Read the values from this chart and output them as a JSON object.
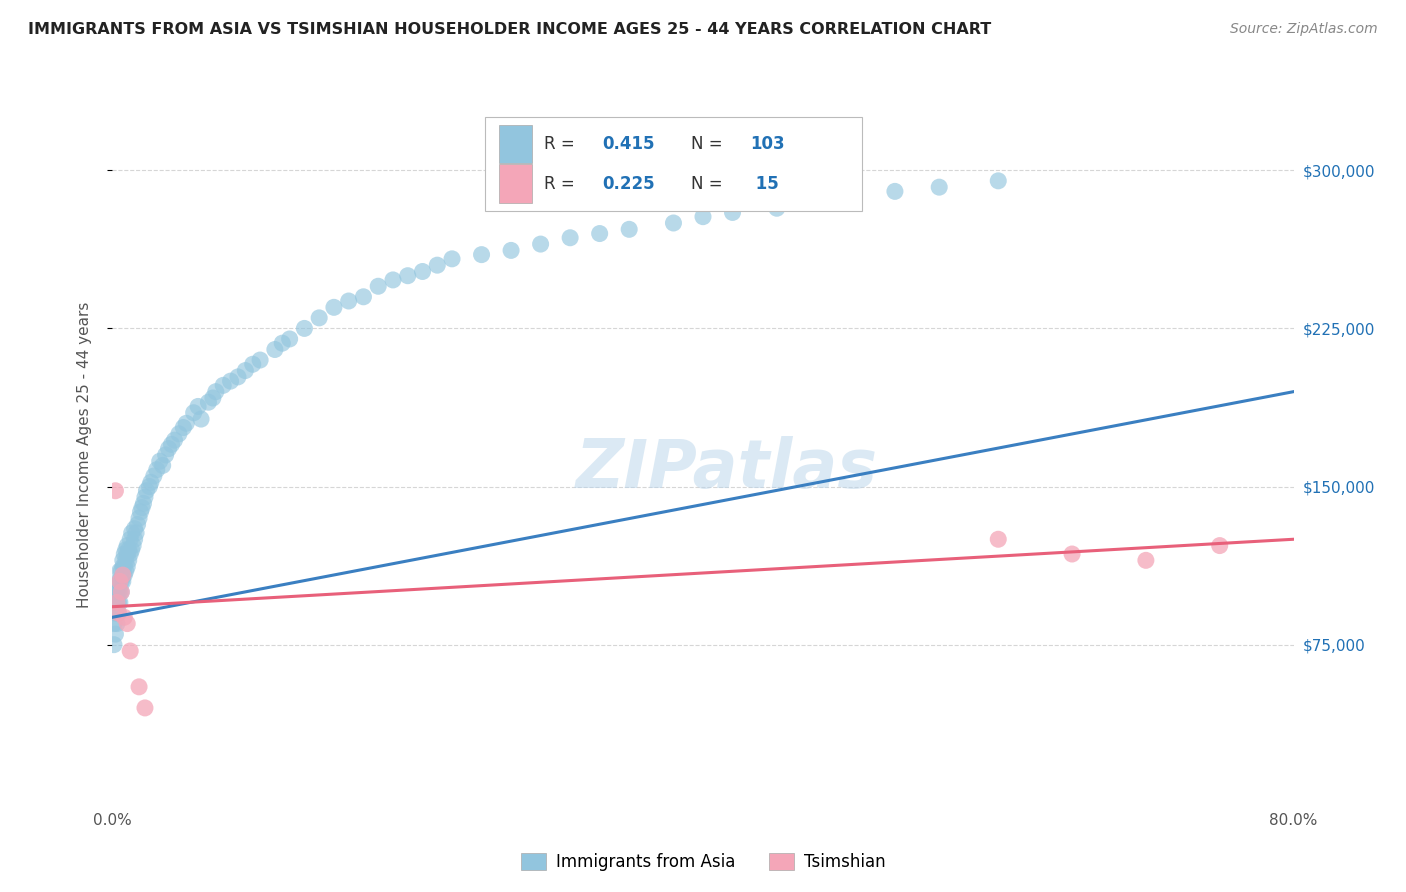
{
  "title": "IMMIGRANTS FROM ASIA VS TSIMSHIAN HOUSEHOLDER INCOME AGES 25 - 44 YEARS CORRELATION CHART",
  "source": "Source: ZipAtlas.com",
  "ylabel": "Householder Income Ages 25 - 44 years",
  "yticks": [
    75000,
    150000,
    225000,
    300000
  ],
  "ytick_labels": [
    "$75,000",
    "$150,000",
    "$225,000",
    "$300,000"
  ],
  "legend_label1": "Immigrants from Asia",
  "legend_label2": "Tsimshian",
  "color_blue": "#92c5de",
  "color_pink": "#f4a6b8",
  "color_blue_line": "#3a7fc1",
  "color_pink_line": "#e8607a",
  "color_blue_text": "#2171b5",
  "color_grid": "#cccccc",
  "watermark": "ZIPatlas",
  "xlim": [
    0.0,
    0.8
  ],
  "ylim": [
    0,
    330000
  ],
  "blue_trend_x": [
    0.0,
    0.8
  ],
  "blue_trend_y": [
    88000,
    195000
  ],
  "pink_trend_x": [
    0.0,
    0.8
  ],
  "pink_trend_y": [
    93000,
    125000
  ],
  "blue_x": [
    0.001,
    0.001,
    0.002,
    0.002,
    0.002,
    0.003,
    0.003,
    0.003,
    0.004,
    0.004,
    0.004,
    0.004,
    0.005,
    0.005,
    0.005,
    0.005,
    0.006,
    0.006,
    0.006,
    0.007,
    0.007,
    0.007,
    0.007,
    0.008,
    0.008,
    0.008,
    0.009,
    0.009,
    0.009,
    0.01,
    0.01,
    0.01,
    0.011,
    0.011,
    0.012,
    0.012,
    0.013,
    0.013,
    0.014,
    0.015,
    0.015,
    0.016,
    0.017,
    0.018,
    0.019,
    0.02,
    0.021,
    0.022,
    0.023,
    0.025,
    0.026,
    0.028,
    0.03,
    0.032,
    0.034,
    0.036,
    0.038,
    0.04,
    0.042,
    0.045,
    0.048,
    0.05,
    0.055,
    0.058,
    0.06,
    0.065,
    0.068,
    0.07,
    0.075,
    0.08,
    0.085,
    0.09,
    0.095,
    0.1,
    0.11,
    0.115,
    0.12,
    0.13,
    0.14,
    0.15,
    0.16,
    0.17,
    0.18,
    0.19,
    0.2,
    0.21,
    0.22,
    0.23,
    0.25,
    0.27,
    0.29,
    0.31,
    0.33,
    0.35,
    0.38,
    0.4,
    0.42,
    0.45,
    0.48,
    0.5,
    0.53,
    0.56,
    0.6
  ],
  "blue_y": [
    75000,
    85000,
    80000,
    90000,
    95000,
    85000,
    95000,
    100000,
    90000,
    95000,
    100000,
    105000,
    95000,
    100000,
    105000,
    110000,
    100000,
    105000,
    110000,
    105000,
    108000,
    112000,
    115000,
    108000,
    112000,
    118000,
    110000,
    115000,
    120000,
    112000,
    118000,
    122000,
    115000,
    120000,
    118000,
    125000,
    120000,
    128000,
    122000,
    125000,
    130000,
    128000,
    132000,
    135000,
    138000,
    140000,
    142000,
    145000,
    148000,
    150000,
    152000,
    155000,
    158000,
    162000,
    160000,
    165000,
    168000,
    170000,
    172000,
    175000,
    178000,
    180000,
    185000,
    188000,
    182000,
    190000,
    192000,
    195000,
    198000,
    200000,
    202000,
    205000,
    208000,
    210000,
    215000,
    218000,
    220000,
    225000,
    230000,
    235000,
    238000,
    240000,
    245000,
    248000,
    250000,
    252000,
    255000,
    258000,
    260000,
    262000,
    265000,
    268000,
    270000,
    272000,
    275000,
    278000,
    280000,
    282000,
    285000,
    288000,
    290000,
    292000,
    295000
  ],
  "pink_x": [
    0.002,
    0.003,
    0.004,
    0.005,
    0.006,
    0.007,
    0.008,
    0.01,
    0.012,
    0.018,
    0.022,
    0.6,
    0.65,
    0.7,
    0.75
  ],
  "pink_y": [
    148000,
    95000,
    90000,
    105000,
    100000,
    108000,
    88000,
    85000,
    72000,
    55000,
    45000,
    125000,
    118000,
    115000,
    122000
  ]
}
